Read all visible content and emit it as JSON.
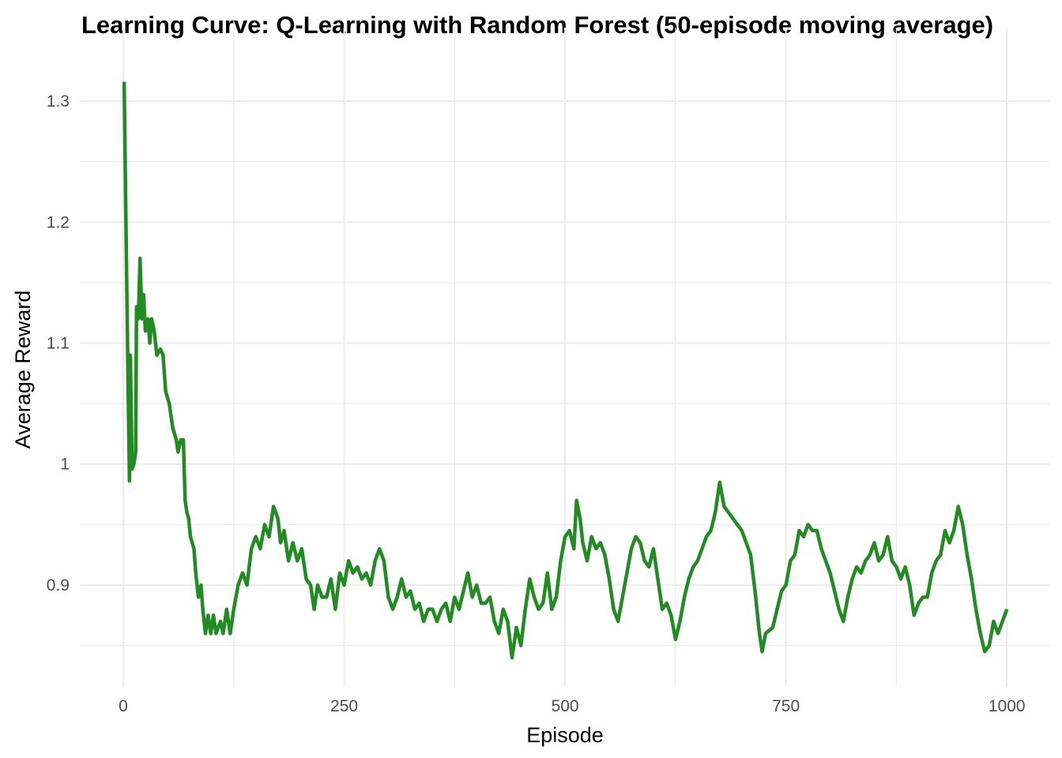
{
  "chart_data": {
    "type": "line",
    "title": "Learning Curve: Q-Learning with Random Forest (50-episode moving average)",
    "x_label": "Episode",
    "y_label": "Average Reward",
    "xlim": [
      -49.2,
      1049
    ],
    "ylim": [
      0.8158,
      1.3607
    ],
    "xticks": [
      0,
      250,
      500,
      750,
      1000
    ],
    "yticks": [
      0.9,
      1.0,
      {
        "value": 1.1,
        "label": "1.1"
      },
      1.2,
      1.3
    ],
    "xminor": [
      125,
      375,
      625,
      875
    ],
    "yminor": [
      0.85,
      0.95,
      1.05,
      1.15,
      1.25
    ],
    "grid": true,
    "series": [
      {
        "name": "Average Reward",
        "color": "#228b22",
        "x": [
          1,
          3,
          5,
          7,
          8,
          10,
          12,
          14,
          15,
          17,
          19,
          21,
          23,
          25,
          28,
          30,
          32,
          35,
          38,
          42,
          45,
          48,
          52,
          56,
          60,
          62,
          65,
          68,
          70,
          72,
          74,
          76,
          80,
          82,
          85,
          88,
          90,
          93,
          96,
          99,
          102,
          105,
          110,
          113,
          117,
          121,
          125,
          130,
          135,
          140,
          145,
          150,
          155,
          160,
          165,
          170,
          175,
          178,
          182,
          187,
          192,
          197,
          202,
          207,
          212,
          216,
          220,
          225,
          230,
          235,
          240,
          245,
          250,
          255,
          260,
          265,
          270,
          275,
          280,
          285,
          290,
          295,
          300,
          305,
          310,
          315,
          320,
          325,
          330,
          335,
          340,
          345,
          350,
          355,
          360,
          365,
          370,
          375,
          380,
          385,
          390,
          395,
          400,
          405,
          410,
          415,
          420,
          425,
          430,
          435,
          440,
          445,
          450,
          455,
          460,
          465,
          470,
          475,
          480,
          485,
          490,
          495,
          500,
          505,
          510,
          513,
          517,
          520,
          525,
          530,
          535,
          540,
          545,
          550,
          555,
          560,
          565,
          570,
          575,
          580,
          585,
          590,
          595,
          600,
          605,
          610,
          615,
          620,
          625,
          630,
          635,
          640,
          645,
          650,
          655,
          660,
          665,
          670,
          675,
          680,
          685,
          690,
          695,
          700,
          705,
          710,
          715,
          720,
          723,
          727,
          735,
          740,
          745,
          750,
          755,
          760,
          765,
          770,
          775,
          780,
          785,
          790,
          795,
          800,
          805,
          810,
          815,
          820,
          825,
          830,
          835,
          840,
          845,
          850,
          855,
          860,
          865,
          870,
          875,
          880,
          885,
          890,
          895,
          900,
          905,
          910,
          915,
          920,
          925,
          930,
          935,
          940,
          945,
          950,
          955,
          960,
          965,
          970,
          975,
          980,
          985,
          990,
          995,
          1000
        ],
        "values": [
          1.316,
          1.2,
          1.09,
          0.986,
          1.09,
          0.996,
          1.0,
          1.01,
          1.13,
          1.12,
          1.17,
          1.12,
          1.14,
          1.11,
          1.12,
          1.1,
          1.12,
          1.11,
          1.09,
          1.095,
          1.09,
          1.06,
          1.05,
          1.03,
          1.02,
          1.01,
          1.02,
          1.02,
          0.97,
          0.96,
          0.955,
          0.94,
          0.93,
          0.91,
          0.89,
          0.9,
          0.88,
          0.86,
          0.875,
          0.86,
          0.875,
          0.86,
          0.87,
          0.86,
          0.88,
          0.86,
          0.88,
          0.9,
          0.91,
          0.9,
          0.93,
          0.94,
          0.93,
          0.95,
          0.94,
          0.965,
          0.955,
          0.935,
          0.945,
          0.92,
          0.935,
          0.92,
          0.93,
          0.905,
          0.9,
          0.88,
          0.9,
          0.89,
          0.89,
          0.905,
          0.88,
          0.91,
          0.9,
          0.92,
          0.91,
          0.915,
          0.905,
          0.91,
          0.9,
          0.92,
          0.93,
          0.92,
          0.89,
          0.88,
          0.89,
          0.905,
          0.89,
          0.895,
          0.88,
          0.885,
          0.87,
          0.88,
          0.88,
          0.87,
          0.88,
          0.885,
          0.87,
          0.89,
          0.88,
          0.895,
          0.91,
          0.89,
          0.9,
          0.885,
          0.885,
          0.89,
          0.87,
          0.86,
          0.88,
          0.87,
          0.84,
          0.865,
          0.85,
          0.88,
          0.905,
          0.89,
          0.88,
          0.885,
          0.91,
          0.88,
          0.89,
          0.92,
          0.94,
          0.945,
          0.93,
          0.97,
          0.955,
          0.935,
          0.92,
          0.94,
          0.93,
          0.935,
          0.925,
          0.905,
          0.88,
          0.87,
          0.89,
          0.91,
          0.93,
          0.94,
          0.935,
          0.92,
          0.915,
          0.93,
          0.905,
          0.88,
          0.885,
          0.875,
          0.855,
          0.87,
          0.89,
          0.905,
          0.915,
          0.92,
          0.93,
          0.94,
          0.945,
          0.96,
          0.985,
          0.965,
          0.96,
          0.955,
          0.95,
          0.945,
          0.935,
          0.925,
          0.895,
          0.86,
          0.845,
          0.86,
          0.865,
          0.88,
          0.895,
          0.9,
          0.92,
          0.925,
          0.945,
          0.94,
          0.95,
          0.945,
          0.945,
          0.93,
          0.92,
          0.91,
          0.895,
          0.88,
          0.87,
          0.89,
          0.905,
          0.915,
          0.91,
          0.92,
          0.925,
          0.935,
          0.92,
          0.925,
          0.94,
          0.92,
          0.915,
          0.905,
          0.915,
          0.9,
          0.875,
          0.885,
          0.89,
          0.89,
          0.91,
          0.92,
          0.925,
          0.945,
          0.935,
          0.945,
          0.965,
          0.95,
          0.925,
          0.905,
          0.88,
          0.86,
          0.845,
          0.85,
          0.87,
          0.86,
          0.87,
          0.88
        ]
      }
    ]
  }
}
